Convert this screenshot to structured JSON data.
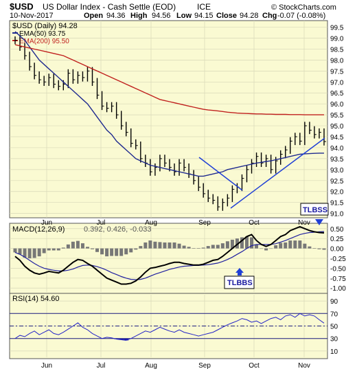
{
  "header": {
    "symbol": "$USD",
    "name": "US Dollar Index - Cash Settle (EOD)",
    "exchange": "ICE",
    "source": "© StockCharts.com",
    "date": "10-Nov-2017",
    "open_label": "Open",
    "open": "94.36",
    "high_label": "High",
    "high": "94.56",
    "low_label": "Low",
    "low": "94.15",
    "close_label": "Close",
    "close": "94.28",
    "chg_label": "Chg",
    "chg": "-0.07 (-0.08%)"
  },
  "legend": {
    "price": "$USD (Daily) 94.28",
    "ema50": "EMA(50) 93.75",
    "ema200": "EMA(200) 95.50",
    "macd_name": "MACD(12,26,9)",
    "macd_values": "0.392, 0.426, -0.033",
    "rsi": "RSI(14) 54.60"
  },
  "annotations": {
    "tlbss": "TLBSS",
    "tlbbs": "TLBBS"
  },
  "colors": {
    "panel_bg": "#fafad2",
    "price_bars": "#000000",
    "ema50": "#1f2a8f",
    "ema200": "#c0201e",
    "trendline": "#1f3fd6",
    "macd_line": "#000000",
    "signal_line": "#2020a0",
    "histogram": "#777777",
    "rsi_line": "#2323c8",
    "rsi_fill": "#1a1aa0"
  },
  "chart_data": [
    {
      "type": "line",
      "panel": "price",
      "title": "US Dollar Index - Cash Settle (EOD)",
      "x_ticks": [
        "Jun",
        "Jul",
        "Aug",
        "Sep",
        "Oct",
        "Nov"
      ],
      "y_ticks": [
        "91.0",
        "91.5",
        "92.0",
        "92.5",
        "93.0",
        "93.5",
        "94.0",
        "94.5",
        "95.0",
        "95.5",
        "96.0",
        "96.5",
        "97.0",
        "97.5",
        "98.0",
        "98.5",
        "99.0",
        "99.5"
      ],
      "ylim": [
        90.8,
        99.8
      ],
      "series": [
        {
          "name": "$USD (Daily)",
          "values": [
            98.9,
            98.6,
            98.2,
            97.7,
            97.3,
            97.1,
            97.0,
            97.2,
            96.9,
            96.8,
            96.9,
            97.4,
            97.1,
            97.3,
            97.2,
            97.5,
            97.0,
            96.4,
            95.9,
            95.8,
            95.9,
            95.5,
            95.0,
            94.7,
            94.2,
            94.1,
            93.5,
            93.3,
            92.9,
            93.1,
            93.5,
            93.3,
            93.1,
            92.9,
            93.3,
            93.1,
            92.8,
            92.5,
            92.2,
            91.9,
            91.7,
            91.6,
            91.3,
            91.5,
            91.7,
            92.1,
            92.2,
            92.6,
            93.0,
            93.3,
            93.6,
            93.3,
            93.5,
            93.0,
            93.4,
            93.7,
            93.9,
            94.3,
            94.5,
            94.3,
            95.0,
            94.8,
            94.6,
            94.7,
            94.28
          ]
        },
        {
          "name": "EMA(50)",
          "values": [
            99.3,
            99.1,
            98.9,
            98.6,
            98.3,
            98.0,
            97.8,
            97.6,
            97.4,
            97.2,
            97.0,
            96.8,
            96.6,
            96.4,
            96.2,
            96.0,
            95.7,
            95.4,
            95.1,
            94.8,
            94.6,
            94.3,
            94.1,
            93.9,
            93.7,
            93.5,
            93.4,
            93.3,
            93.2,
            93.15,
            93.1,
            93.05,
            93.0,
            92.95,
            92.9,
            92.85,
            92.8,
            92.75,
            92.7,
            92.7,
            92.75,
            92.8,
            92.85,
            92.9,
            93.0,
            93.05,
            93.1,
            93.15,
            93.2,
            93.25,
            93.3,
            93.33,
            93.37,
            93.4,
            93.45,
            93.5,
            93.55,
            93.6,
            93.65,
            93.7,
            93.72,
            93.73,
            93.74,
            93.75,
            93.75
          ]
        },
        {
          "name": "EMA(200)",
          "values": [
            98.7,
            98.65,
            98.6,
            98.55,
            98.5,
            98.45,
            98.4,
            98.35,
            98.3,
            98.25,
            98.2,
            98.1,
            98.0,
            97.9,
            97.8,
            97.7,
            97.6,
            97.5,
            97.4,
            97.3,
            97.2,
            97.1,
            97.0,
            96.9,
            96.8,
            96.7,
            96.6,
            96.5,
            96.4,
            96.3,
            96.2,
            96.15,
            96.1,
            96.05,
            96.0,
            95.95,
            95.9,
            95.85,
            95.8,
            95.75,
            95.72,
            95.7,
            95.68,
            95.65,
            95.62,
            95.6,
            95.58,
            95.57,
            95.56,
            95.55,
            95.54,
            95.54,
            95.53,
            95.53,
            95.52,
            95.52,
            95.52,
            95.51,
            95.51,
            95.51,
            95.5,
            95.5,
            95.5,
            95.5,
            95.5
          ]
        }
      ]
    },
    {
      "type": "line",
      "panel": "macd",
      "title": "MACD(12,26,9)",
      "x_ticks": [
        "Jun",
        "Jul",
        "Aug",
        "Sep",
        "Oct",
        "Nov"
      ],
      "y_ticks": [
        "0.50",
        "0.25",
        "0.00",
        "-0.25",
        "-0.50",
        "-0.75",
        "-1.00"
      ],
      "ylim": [
        -1.1,
        0.6
      ],
      "series": [
        {
          "name": "MACD",
          "values": [
            -0.2,
            -0.3,
            -0.45,
            -0.55,
            -0.62,
            -0.65,
            -0.62,
            -0.58,
            -0.6,
            -0.62,
            -0.55,
            -0.45,
            -0.35,
            -0.28,
            -0.3,
            -0.38,
            -0.45,
            -0.55,
            -0.65,
            -0.75,
            -0.8,
            -0.85,
            -0.9,
            -0.9,
            -0.88,
            -0.82,
            -0.72,
            -0.6,
            -0.5,
            -0.48,
            -0.45,
            -0.42,
            -0.38,
            -0.35,
            -0.35,
            -0.38,
            -0.4,
            -0.42,
            -0.42,
            -0.4,
            -0.35,
            -0.3,
            -0.28,
            -0.2,
            -0.1,
            0.0,
            0.1,
            0.2,
            0.3,
            0.35,
            0.2,
            0.1,
            0.05,
            0.1,
            0.2,
            0.3,
            0.35,
            0.45,
            0.5,
            0.55,
            0.5,
            0.45,
            0.42,
            0.4,
            0.392
          ]
        },
        {
          "name": "Signal",
          "values": [
            -0.1,
            -0.15,
            -0.22,
            -0.3,
            -0.38,
            -0.45,
            -0.5,
            -0.53,
            -0.55,
            -0.57,
            -0.57,
            -0.55,
            -0.52,
            -0.47,
            -0.43,
            -0.42,
            -0.43,
            -0.46,
            -0.5,
            -0.55,
            -0.61,
            -0.66,
            -0.71,
            -0.75,
            -0.78,
            -0.79,
            -0.78,
            -0.75,
            -0.7,
            -0.65,
            -0.61,
            -0.57,
            -0.53,
            -0.5,
            -0.47,
            -0.45,
            -0.44,
            -0.43,
            -0.43,
            -0.42,
            -0.41,
            -0.39,
            -0.37,
            -0.33,
            -0.28,
            -0.22,
            -0.15,
            -0.08,
            0.0,
            0.07,
            0.1,
            0.1,
            0.1,
            0.1,
            0.12,
            0.16,
            0.2,
            0.25,
            0.3,
            0.35,
            0.38,
            0.4,
            0.41,
            0.42,
            0.426
          ]
        },
        {
          "name": "Histogram",
          "values": [
            -0.1,
            -0.15,
            -0.23,
            -0.25,
            -0.24,
            -0.2,
            -0.12,
            -0.05,
            -0.05,
            -0.05,
            0.02,
            0.1,
            0.17,
            0.19,
            0.13,
            0.04,
            -0.02,
            -0.09,
            -0.15,
            -0.2,
            -0.19,
            -0.19,
            -0.19,
            -0.15,
            -0.1,
            -0.03,
            0.06,
            0.15,
            0.2,
            0.17,
            0.16,
            0.15,
            0.15,
            0.15,
            0.12,
            0.07,
            0.04,
            0.01,
            0.01,
            0.02,
            0.06,
            0.09,
            0.09,
            0.13,
            0.18,
            0.22,
            0.25,
            0.28,
            0.3,
            0.28,
            0.1,
            0.0,
            -0.05,
            0.0,
            0.08,
            0.14,
            0.15,
            0.2,
            0.2,
            0.2,
            0.12,
            0.05,
            0.01,
            -0.02,
            -0.033
          ]
        }
      ]
    },
    {
      "type": "line",
      "panel": "rsi",
      "title": "RSI(14)",
      "x_ticks": [
        "Jun",
        "Jul",
        "Aug",
        "Sep",
        "Oct",
        "Nov"
      ],
      "y_ticks": [
        "90",
        "70",
        "50",
        "30",
        "10"
      ],
      "ylim": [
        0,
        100
      ],
      "series": [
        {
          "name": "RSI(14)",
          "values": [
            30,
            35,
            33,
            38,
            42,
            36,
            40,
            44,
            38,
            36,
            40,
            45,
            50,
            55,
            48,
            44,
            38,
            34,
            30,
            32,
            31,
            29,
            28,
            27,
            30,
            34,
            38,
            42,
            40,
            44,
            48,
            45,
            42,
            40,
            44,
            40,
            38,
            36,
            34,
            36,
            38,
            40,
            44,
            48,
            52,
            55,
            58,
            62,
            60,
            56,
            58,
            54,
            58,
            62,
            64,
            60,
            66,
            68,
            64,
            70,
            66,
            68,
            66,
            60,
            54.6
          ]
        }
      ]
    }
  ]
}
